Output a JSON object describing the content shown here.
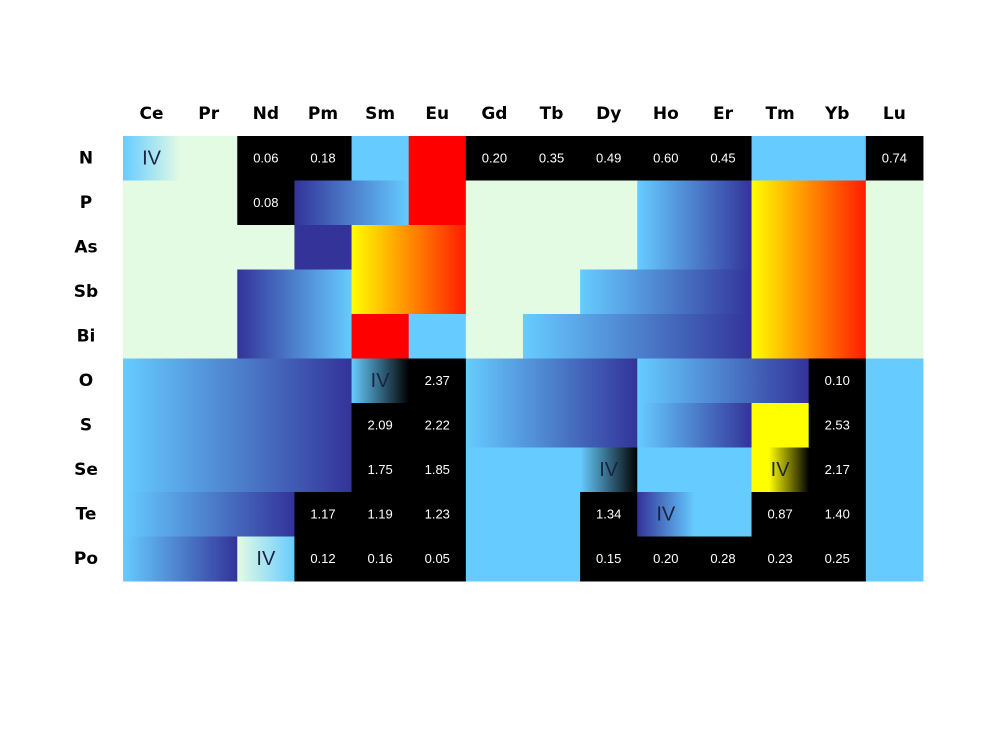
{
  "table": {
    "columns": [
      "Ce",
      "Pr",
      "Nd",
      "Pm",
      "Sm",
      "Eu",
      "Gd",
      "Tb",
      "Dy",
      "Ho",
      "Er",
      "Tm",
      "Yb",
      "Lu"
    ],
    "rows": [
      "N",
      "P",
      "As",
      "Sb",
      "Bi",
      "O",
      "S",
      "Se",
      "Te",
      "Po"
    ],
    "cells": [
      [
        "IV",
        null,
        "0.06",
        "0.18",
        null,
        null,
        "0.20",
        "0.35",
        "0.49",
        "0.60",
        "0.45",
        null,
        null,
        "0.74"
      ],
      [
        null,
        null,
        "0.08",
        null,
        null,
        null,
        null,
        null,
        null,
        null,
        null,
        null,
        null,
        null
      ],
      [
        null,
        null,
        null,
        null,
        null,
        null,
        null,
        null,
        null,
        null,
        null,
        null,
        null,
        null
      ],
      [
        null,
        null,
        null,
        null,
        null,
        null,
        null,
        null,
        null,
        null,
        null,
        null,
        null,
        null
      ],
      [
        null,
        null,
        null,
        null,
        null,
        null,
        null,
        null,
        null,
        null,
        null,
        null,
        null,
        null
      ],
      [
        null,
        null,
        null,
        null,
        "IV",
        "2.37",
        null,
        null,
        null,
        null,
        null,
        null,
        "0.10",
        null
      ],
      [
        null,
        null,
        null,
        null,
        "2.09",
        "2.22",
        null,
        null,
        null,
        null,
        null,
        null,
        "2.53",
        null
      ],
      [
        null,
        null,
        null,
        null,
        "1.75",
        "1.85",
        null,
        null,
        "IV",
        null,
        null,
        "IV",
        "2.17",
        null
      ],
      [
        null,
        null,
        null,
        "1.17",
        "1.19",
        "1.23",
        null,
        null,
        "1.34",
        "IV",
        null,
        "0.87",
        "1.40",
        null
      ],
      [
        null,
        null,
        "IV",
        "0.12",
        "0.16",
        "0.05",
        null,
        null,
        "0.15",
        "0.20",
        "0.28",
        "0.23",
        "0.25",
        null
      ]
    ]
  }
}
